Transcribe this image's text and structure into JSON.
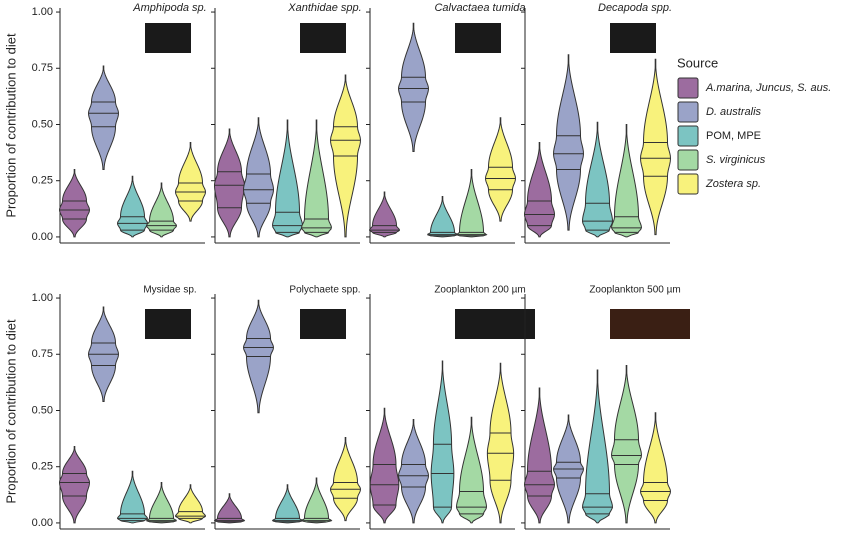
{
  "chart_data": {
    "type": "violin",
    "ylabel": "Proportion of contribution to diet",
    "legend_title": "Source",
    "ylim": [
      -0.027,
      1.018
    ],
    "yticks": [
      {
        "value": 0,
        "label": "0.00"
      },
      {
        "value": 0.25,
        "label": "0.25"
      },
      {
        "value": 0.5,
        "label": "0.50"
      },
      {
        "value": 0.75,
        "label": "0.75"
      },
      {
        "value": 1,
        "label": "1.00"
      }
    ],
    "series": [
      {
        "name": "A.marina, Juncus, S. aus.",
        "color": "#9c6c9f"
      },
      {
        "name": "D. australis",
        "color": "#9aa3c8"
      },
      {
        "name": "POM, MPE",
        "color": "#7cc4c2"
      },
      {
        "name": "S. virginicus",
        "color": "#a4d9a4"
      },
      {
        "name": "Zostera sp.",
        "color": "#f8f27c"
      }
    ],
    "panels": [
      {
        "title": "Amphipoda sp.",
        "stats": [
          [
            0,
            0.08,
            0.12,
            0.16,
            0.3
          ],
          [
            0.3,
            0.49,
            0.55,
            0.6,
            0.76
          ],
          [
            0,
            0.03,
            0.06,
            0.09,
            0.27
          ],
          [
            0,
            0.03,
            0.05,
            0.07,
            0.24
          ],
          [
            0.07,
            0.16,
            0.2,
            0.24,
            0.42
          ]
        ]
      },
      {
        "title": "Xanthidae spp.",
        "stats": [
          [
            0,
            0.13,
            0.23,
            0.29,
            0.48
          ],
          [
            0,
            0.15,
            0.21,
            0.28,
            0.53
          ],
          [
            0,
            0.02,
            0.05,
            0.11,
            0.52
          ],
          [
            0,
            0.02,
            0.04,
            0.08,
            0.52
          ],
          [
            0,
            0.36,
            0.43,
            0.49,
            0.72
          ]
        ]
      },
      {
        "title": "Calvactaea tumida",
        "stats": [
          [
            0,
            0.02,
            0.03,
            0.05,
            0.2
          ],
          [
            0.38,
            0.6,
            0.66,
            0.71,
            0.95
          ],
          [
            0,
            0.005,
            0.01,
            0.02,
            0.18
          ],
          [
            0,
            0.005,
            0.01,
            0.02,
            0.3
          ],
          [
            0.07,
            0.21,
            0.26,
            0.31,
            0.53
          ]
        ]
      },
      {
        "title": "Decapoda spp.",
        "stats": [
          [
            0,
            0.05,
            0.1,
            0.16,
            0.42
          ],
          [
            0.03,
            0.3,
            0.37,
            0.45,
            0.81
          ],
          [
            0,
            0.03,
            0.07,
            0.15,
            0.51
          ],
          [
            0,
            0.02,
            0.04,
            0.09,
            0.5
          ],
          [
            0.01,
            0.27,
            0.35,
            0.42,
            0.79
          ]
        ]
      },
      {
        "title": "Mysidae sp.",
        "stats": [
          [
            0,
            0.12,
            0.18,
            0.22,
            0.34
          ],
          [
            0.54,
            0.7,
            0.75,
            0.8,
            0.96
          ],
          [
            0,
            0.01,
            0.02,
            0.04,
            0.23
          ],
          [
            0,
            0.005,
            0.01,
            0.02,
            0.18
          ],
          [
            0,
            0.02,
            0.03,
            0.05,
            0.17
          ]
        ]
      },
      {
        "title": "Polychaete spp.",
        "stats": [
          [
            0,
            0.005,
            0.01,
            0.02,
            0.13
          ],
          [
            0.49,
            0.74,
            0.78,
            0.82,
            0.99
          ],
          [
            0,
            0.005,
            0.01,
            0.02,
            0.17
          ],
          [
            0,
            0.005,
            0.01,
            0.02,
            0.2
          ],
          [
            0.01,
            0.11,
            0.15,
            0.18,
            0.38
          ]
        ]
      },
      {
        "title": "Zooplankton 200 µm",
        "stats": [
          [
            0,
            0.08,
            0.17,
            0.26,
            0.51
          ],
          [
            0,
            0.16,
            0.21,
            0.26,
            0.46
          ],
          [
            0,
            0.07,
            0.22,
            0.35,
            0.72
          ],
          [
            0,
            0.04,
            0.07,
            0.14,
            0.47
          ],
          [
            0,
            0.19,
            0.31,
            0.4,
            0.71
          ]
        ]
      },
      {
        "title": "Zooplankton 500 µm",
        "stats": [
          [
            0,
            0.12,
            0.17,
            0.23,
            0.6
          ],
          [
            0,
            0.2,
            0.24,
            0.27,
            0.48
          ],
          [
            0,
            0.04,
            0.07,
            0.13,
            0.68
          ],
          [
            0,
            0.26,
            0.3,
            0.37,
            0.7
          ],
          [
            0,
            0.1,
            0.14,
            0.18,
            0.49
          ]
        ]
      }
    ]
  }
}
